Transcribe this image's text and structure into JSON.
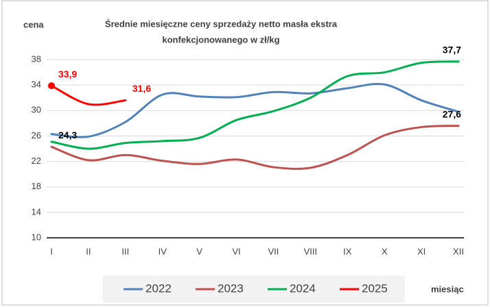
{
  "chart_data": {
    "type": "line",
    "title": [
      "Średnie miesięczne ceny sprzedaży netto masła ekstra",
      "konfekcjonowanego w zł/kg"
    ],
    "y_label": "cena",
    "x_label": "miesiąc",
    "categories": [
      "I",
      "II",
      "III",
      "IV",
      "V",
      "VI",
      "VII",
      "VIII",
      "IX",
      "X",
      "XI",
      "XII"
    ],
    "ylim": [
      10,
      38
    ],
    "yticks": [
      10,
      14,
      18,
      22,
      26,
      30,
      34,
      38
    ],
    "grid": true,
    "series": [
      {
        "name": "2022",
        "color": "#4f81bd",
        "label_color": "#000000",
        "values": [
          26.3,
          25.9,
          28.2,
          32.5,
          32.2,
          32.1,
          32.9,
          32.7,
          33.5,
          34.1,
          31.6,
          29.8
        ]
      },
      {
        "name": "2023",
        "color": "#c0504d",
        "label_color": "#000000",
        "values": [
          24.3,
          22.2,
          23.0,
          22.1,
          21.6,
          22.3,
          21.1,
          21.0,
          23.0,
          26.1,
          27.4,
          27.6
        ],
        "value_labels": [
          "24,3",
          null,
          null,
          null,
          null,
          null,
          null,
          null,
          null,
          null,
          null,
          "27,6"
        ]
      },
      {
        "name": "2024",
        "color": "#00b050",
        "label_color": "#000000",
        "values": [
          25.1,
          24.0,
          24.9,
          25.2,
          25.7,
          28.5,
          29.9,
          32.0,
          35.4,
          36.0,
          37.5,
          37.7
        ],
        "value_labels": [
          null,
          null,
          null,
          null,
          null,
          null,
          null,
          null,
          null,
          null,
          null,
          "37,7"
        ]
      },
      {
        "name": "2025",
        "color": "#ff0000",
        "label_color": "#ff0000",
        "marker": true,
        "values": [
          33.9,
          31.0,
          31.6,
          null,
          null,
          null,
          null,
          null,
          null,
          null,
          null,
          null
        ],
        "value_labels": [
          "33,9",
          null,
          "31,6",
          null,
          null,
          null,
          null,
          null,
          null,
          null,
          null,
          null
        ]
      }
    ]
  }
}
